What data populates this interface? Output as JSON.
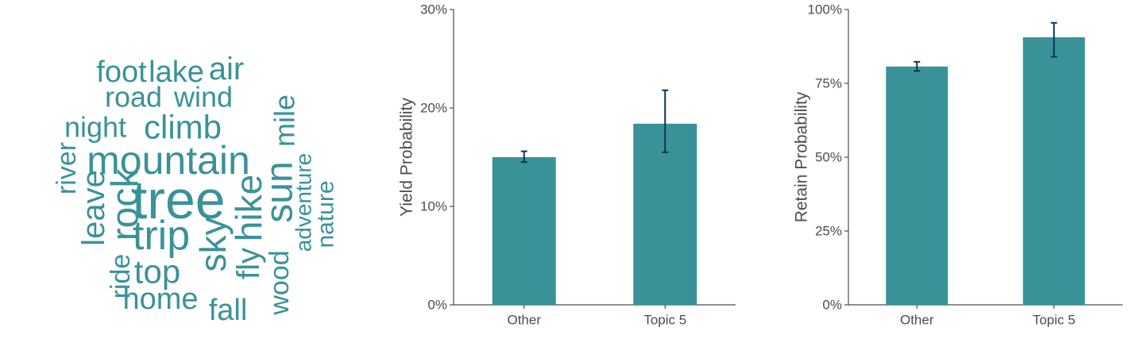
{
  "wordcloud": {
    "color": "#3a9299",
    "words": [
      "tree",
      "mountain",
      "trip",
      "rock",
      "sun",
      "hike",
      "climb",
      "sky",
      "top",
      "leave",
      "home",
      "mile",
      "river",
      "night",
      "fly",
      "road",
      "wind",
      "foot",
      "lake",
      "air",
      "fall",
      "ride",
      "wood",
      "adventure",
      "nature"
    ]
  },
  "chart_data": [
    {
      "type": "bar",
      "categories": [
        "Other",
        "Topic 5"
      ],
      "values": [
        0.15,
        0.184
      ],
      "error_low": [
        0.145,
        0.155
      ],
      "error_high": [
        0.156,
        0.218
      ],
      "ylabel": "Yield Probability",
      "ylim": [
        0,
        0.3
      ],
      "yticks": [
        0,
        0.1,
        0.2,
        0.3
      ],
      "ytick_labels": [
        "0%",
        "10%",
        "20%",
        "30%"
      ],
      "bar_color": "#3a9299",
      "error_color": "#0d3557",
      "grid": false
    },
    {
      "type": "bar",
      "categories": [
        "Other",
        "Topic 5"
      ],
      "values": [
        0.807,
        0.906
      ],
      "error_low": [
        0.792,
        0.84
      ],
      "error_high": [
        0.823,
        0.955
      ],
      "ylabel": "Retain Probability",
      "ylim": [
        0,
        1.0
      ],
      "yticks": [
        0,
        0.25,
        0.5,
        0.75,
        1.0
      ],
      "ytick_labels": [
        "0%",
        "25%",
        "50%",
        "75%",
        "100%"
      ],
      "bar_color": "#3a9299",
      "error_color": "#0d3557",
      "grid": false
    }
  ]
}
